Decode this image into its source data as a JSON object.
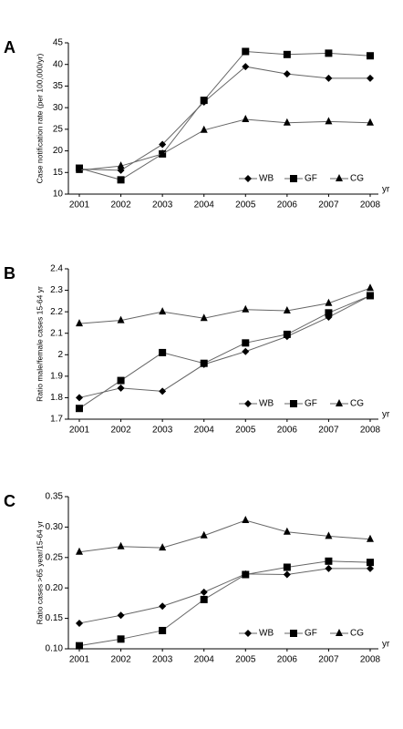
{
  "chart_data": [
    {
      "type": "line",
      "panel_label": "A",
      "y_label": "Case notification rate (per 100,000/yr)",
      "x_label": "yr",
      "categories": [
        "2001",
        "2002",
        "2003",
        "2004",
        "2005",
        "2006",
        "2007",
        "2008"
      ],
      "series": [
        {
          "name": "WB",
          "color": "#000000",
          "marker": "diamond",
          "values": [
            15.8,
            15.5,
            21.5,
            31.3,
            39.5,
            37.8,
            36.8,
            36.8
          ]
        },
        {
          "name": "GF",
          "color": "#000000",
          "marker": "square",
          "values": [
            16.0,
            13.3,
            19.3,
            31.7,
            43.0,
            42.3,
            42.6,
            42.0
          ]
        },
        {
          "name": "CG",
          "color": "#000000",
          "marker": "triangle",
          "values": [
            15.5,
            16.5,
            19.3,
            24.8,
            27.3,
            26.5,
            26.8,
            26.5
          ]
        }
      ],
      "ylim": [
        10,
        45
      ],
      "yticks": [
        10,
        15,
        20,
        25,
        30,
        35,
        40,
        45
      ],
      "legend": "lower right"
    },
    {
      "type": "line",
      "panel_label": "B",
      "y_label": "Ratio male/female cases 15-64  yr",
      "x_label": "yr",
      "categories": [
        "2001",
        "2002",
        "2003",
        "2004",
        "2005",
        "2006",
        "2007",
        "2008"
      ],
      "series": [
        {
          "name": "WB",
          "color": "#000000",
          "marker": "diamond",
          "values": [
            1.8,
            1.845,
            1.83,
            1.955,
            2.015,
            2.085,
            2.175,
            2.275
          ]
        },
        {
          "name": "GF",
          "color": "#000000",
          "marker": "square",
          "values": [
            1.75,
            1.88,
            2.01,
            1.96,
            2.055,
            2.095,
            2.195,
            2.275
          ]
        },
        {
          "name": "CG",
          "color": "#000000",
          "marker": "triangle",
          "values": [
            2.145,
            2.16,
            2.2,
            2.17,
            2.21,
            2.205,
            2.24,
            2.31
          ]
        }
      ],
      "ylim": [
        1.7,
        2.4
      ],
      "yticks": [
        1.7,
        1.8,
        1.9,
        2,
        2.1,
        2.2,
        2.3,
        2.4
      ],
      "legend": "lower right"
    },
    {
      "type": "line",
      "panel_label": "C",
      "y_label": "Ratio cases >65 year/15-64  yr",
      "x_label": "yr",
      "categories": [
        "2001",
        "2002",
        "2003",
        "2004",
        "2005",
        "2006",
        "2007",
        "2008"
      ],
      "series": [
        {
          "name": "WB",
          "color": "#000000",
          "marker": "diamond",
          "values": [
            0.142,
            0.155,
            0.17,
            0.193,
            0.223,
            0.222,
            0.232,
            0.232
          ]
        },
        {
          "name": "GF",
          "color": "#000000",
          "marker": "square",
          "values": [
            0.105,
            0.116,
            0.13,
            0.181,
            0.222,
            0.234,
            0.244,
            0.242
          ]
        },
        {
          "name": "CG",
          "color": "#000000",
          "marker": "triangle",
          "values": [
            0.259,
            0.268,
            0.266,
            0.286,
            0.311,
            0.292,
            0.285,
            0.28
          ]
        }
      ],
      "ylim": [
        0.1,
        0.35
      ],
      "yticks": [
        {
          "value": 0.1,
          "label": "0.10"
        },
        {
          "value": 0.15,
          "label": "0.15"
        },
        {
          "value": 0.2,
          "label": "0.20"
        },
        {
          "value": 0.25,
          "label": "0.25"
        },
        {
          "value": 0.3,
          "label": "0.30"
        },
        {
          "value": 0.35,
          "label": "0.35"
        }
      ],
      "legend": "lower right"
    }
  ]
}
